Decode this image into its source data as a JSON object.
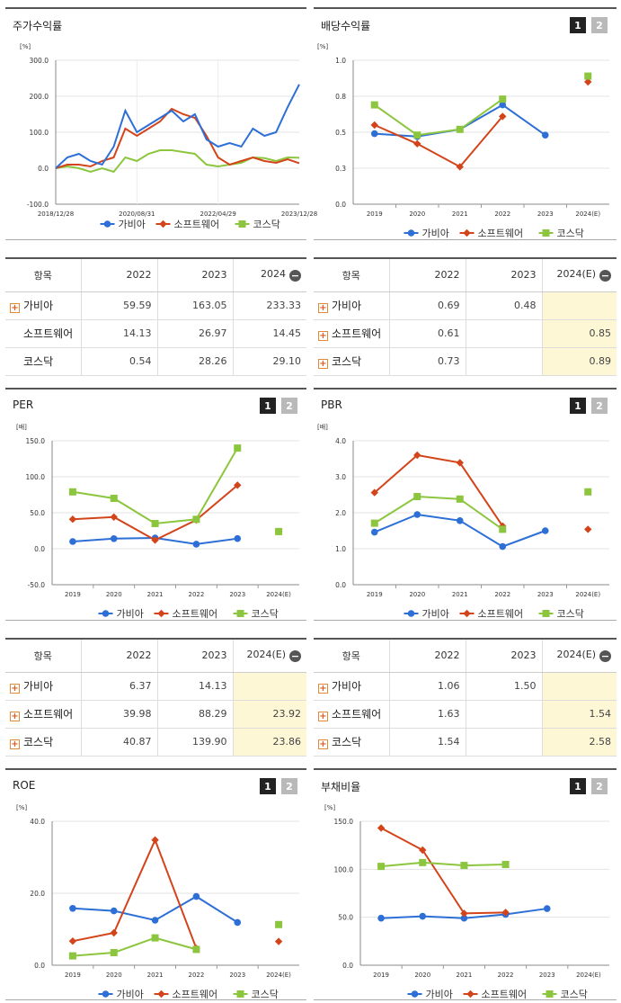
{
  "colors": {
    "gabia": "#2d6fd6",
    "software": "#d4441a",
    "kosdaq": "#8cc63e",
    "highlight": "#fdf7d5"
  },
  "pager": {
    "p1": "1",
    "p2": "2"
  },
  "legend": [
    "가비아",
    "소프트웨어",
    "코스닥"
  ],
  "charts": [
    {
      "id": "stock-return",
      "title": "주가수익률",
      "unit": "[%]",
      "type": "line",
      "yticks": [
        "300.0",
        "200.0",
        "100.0",
        "0.0",
        "-100.0"
      ],
      "xticks": [
        "2018/12/28",
        "2020/08/31",
        "2022/04/29",
        "2023/12/28"
      ]
    },
    {
      "id": "dividend",
      "title": "배당수익률",
      "unit": "[%]",
      "type": "line",
      "yticks": [
        "1.0",
        "0.8",
        "0.5",
        "0.3",
        "0.0"
      ],
      "xticks": [
        "2019",
        "2020",
        "2021",
        "2022",
        "2023",
        "2024(E)"
      ]
    },
    {
      "id": "per",
      "title": "PER",
      "unit": "[배]",
      "type": "line",
      "yticks": [
        "150.0",
        "100.0",
        "50.0",
        "0.0",
        "-50.0"
      ],
      "xticks": [
        "2019",
        "2020",
        "2021",
        "2022",
        "2023",
        "2024(E)"
      ]
    },
    {
      "id": "pbr",
      "title": "PBR",
      "unit": "[배]",
      "type": "line",
      "yticks": [
        "4.0",
        "3.0",
        "2.0",
        "1.0",
        "0.0"
      ],
      "xticks": [
        "2019",
        "2020",
        "2021",
        "2022",
        "2023",
        "2024(E)"
      ]
    },
    {
      "id": "roe",
      "title": "ROE",
      "unit": "[%]",
      "type": "line",
      "yticks": [
        "40.0",
        "20.0",
        "0.0"
      ],
      "xticks": [
        "2019",
        "2020",
        "2021",
        "2022",
        "2023",
        "2024(E)"
      ]
    },
    {
      "id": "debt",
      "title": "부채비율",
      "unit": "[%]",
      "type": "line",
      "yticks": [
        "150.0",
        "100.0",
        "50.0",
        "0.0"
      ],
      "xticks": [
        "2019",
        "2020",
        "2021",
        "2022",
        "2023",
        "2024(E)"
      ]
    }
  ],
  "chart_data": [
    {
      "type": "line",
      "title": "주가수익률",
      "ylim": [
        -100,
        300
      ],
      "x": [
        "2018/12",
        "2019/03",
        "2019/06",
        "2019/09",
        "2019/12",
        "2020/03",
        "2020/06",
        "2020/09",
        "2020/12",
        "2021/03",
        "2021/06",
        "2021/09",
        "2021/12",
        "2022/03",
        "2022/06",
        "2022/09",
        "2022/12",
        "2023/03",
        "2023/06",
        "2023/09",
        "2023/12",
        "2024/03"
      ],
      "series": [
        {
          "name": "가비아",
          "values": [
            0,
            30,
            40,
            20,
            10,
            60,
            160,
            100,
            120,
            140,
            160,
            130,
            150,
            80,
            60,
            70,
            60,
            110,
            90,
            100,
            170,
            233
          ]
        },
        {
          "name": "소프트웨어",
          "values": [
            0,
            10,
            10,
            5,
            20,
            30,
            110,
            90,
            110,
            130,
            165,
            150,
            140,
            90,
            30,
            10,
            20,
            30,
            20,
            15,
            25,
            14
          ]
        },
        {
          "name": "코스닥",
          "values": [
            0,
            5,
            0,
            -10,
            0,
            -10,
            30,
            20,
            40,
            50,
            50,
            45,
            40,
            10,
            5,
            10,
            15,
            30,
            28,
            20,
            30,
            29
          ]
        }
      ]
    },
    {
      "type": "line",
      "title": "배당수익률",
      "ylim": [
        0,
        1.0
      ],
      "categories": [
        "2019",
        "2020",
        "2021",
        "2022",
        "2023",
        "2024(E)"
      ],
      "series": [
        {
          "name": "가비아",
          "values": [
            0.49,
            0.47,
            0.52,
            0.69,
            0.48,
            null
          ]
        },
        {
          "name": "소프트웨어",
          "values": [
            0.55,
            0.42,
            0.26,
            0.61,
            null,
            0.85
          ]
        },
        {
          "name": "코스닥",
          "values": [
            0.69,
            0.48,
            0.52,
            0.73,
            null,
            0.89
          ]
        }
      ]
    },
    {
      "type": "line",
      "title": "PER",
      "ylim": [
        -50,
        150
      ],
      "categories": [
        "2019",
        "2020",
        "2021",
        "2022",
        "2023",
        "2024(E)"
      ],
      "series": [
        {
          "name": "가비아",
          "values": [
            10,
            14,
            15,
            6.37,
            14.13,
            null
          ]
        },
        {
          "name": "소프트웨어",
          "values": [
            41,
            44,
            12,
            39.98,
            88.29,
            23.92
          ]
        },
        {
          "name": "코스닥",
          "values": [
            79,
            70,
            35,
            40.87,
            139.9,
            23.86
          ]
        }
      ]
    },
    {
      "type": "line",
      "title": "PBR",
      "ylim": [
        0,
        4.0
      ],
      "categories": [
        "2019",
        "2020",
        "2021",
        "2022",
        "2023",
        "2024(E)"
      ],
      "series": [
        {
          "name": "가비아",
          "values": [
            1.46,
            1.95,
            1.78,
            1.06,
            1.5,
            null
          ]
        },
        {
          "name": "소프트웨어",
          "values": [
            2.56,
            3.6,
            3.39,
            1.63,
            null,
            1.54
          ]
        },
        {
          "name": "코스닥",
          "values": [
            1.71,
            2.45,
            2.38,
            1.54,
            null,
            2.58
          ]
        }
      ]
    },
    {
      "type": "line",
      "title": "ROE",
      "ylim": [
        0,
        40
      ],
      "categories": [
        "2019",
        "2020",
        "2021",
        "2022",
        "2023",
        "2024(E)"
      ],
      "series": [
        {
          "name": "가비아",
          "values": [
            15.8,
            15.1,
            12.5,
            19.1,
            11.9,
            null
          ]
        },
        {
          "name": "소프트웨어",
          "values": [
            6.7,
            9.0,
            34.8,
            4.7,
            null,
            6.6
          ]
        },
        {
          "name": "코스닥",
          "values": [
            2.6,
            3.5,
            7.6,
            4.4,
            null,
            11.3
          ]
        }
      ]
    },
    {
      "type": "line",
      "title": "부채비율",
      "ylim": [
        0,
        150
      ],
      "categories": [
        "2019",
        "2020",
        "2021",
        "2022",
        "2023",
        "2024(E)"
      ],
      "series": [
        {
          "name": "가비아",
          "values": [
            49,
            51,
            49,
            53,
            59,
            null
          ]
        },
        {
          "name": "소프트웨어",
          "values": [
            143,
            120,
            54,
            55,
            null,
            null
          ]
        },
        {
          "name": "코스닥",
          "values": [
            103,
            107,
            104,
            105,
            null,
            null
          ]
        }
      ]
    }
  ],
  "tables": {
    "stock": {
      "headers": [
        "항목",
        "2022",
        "2023",
        "2024"
      ],
      "rows": [
        {
          "label": "가비아",
          "v": [
            "59.59",
            "163.05",
            "233.33"
          ]
        },
        {
          "label": "소프트웨어",
          "v": [
            "14.13",
            "26.97",
            "14.45"
          ]
        },
        {
          "label": "코스닥",
          "v": [
            "0.54",
            "28.26",
            "29.10"
          ]
        }
      ]
    },
    "dividend": {
      "headers": [
        "항목",
        "2022",
        "2023",
        "2024(E)"
      ],
      "rows": [
        {
          "label": "가비아",
          "v": [
            "0.69",
            "0.48",
            ""
          ]
        },
        {
          "label": "소프트웨어",
          "v": [
            "0.61",
            "",
            "0.85"
          ]
        },
        {
          "label": "코스닥",
          "v": [
            "0.73",
            "",
            "0.89"
          ]
        }
      ]
    },
    "per": {
      "headers": [
        "항목",
        "2022",
        "2023",
        "2024(E)"
      ],
      "rows": [
        {
          "label": "가비아",
          "v": [
            "6.37",
            "14.13",
            ""
          ]
        },
        {
          "label": "소프트웨어",
          "v": [
            "39.98",
            "88.29",
            "23.92"
          ]
        },
        {
          "label": "코스닥",
          "v": [
            "40.87",
            "139.90",
            "23.86"
          ]
        }
      ]
    },
    "pbr": {
      "headers": [
        "항목",
        "2022",
        "2023",
        "2024(E)"
      ],
      "rows": [
        {
          "label": "가비아",
          "v": [
            "1.06",
            "1.50",
            ""
          ]
        },
        {
          "label": "소프트웨어",
          "v": [
            "1.63",
            "",
            "1.54"
          ]
        },
        {
          "label": "코스닥",
          "v": [
            "1.54",
            "",
            "2.58"
          ]
        }
      ]
    }
  }
}
